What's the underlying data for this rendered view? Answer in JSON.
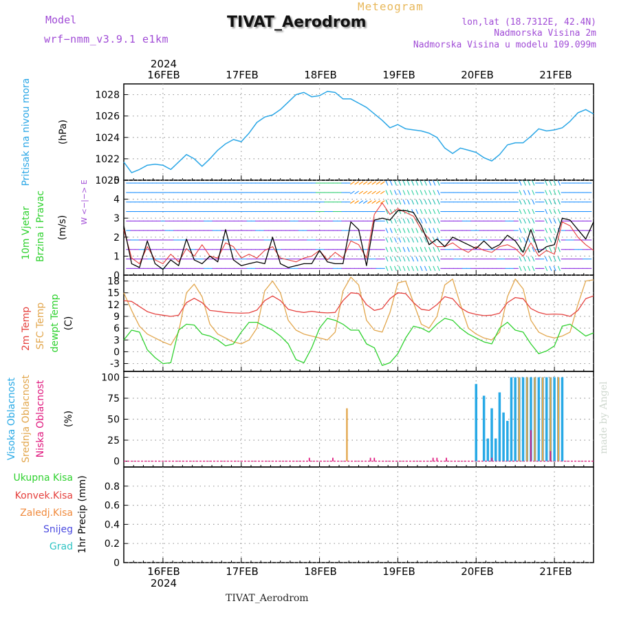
{
  "header": {
    "model_label": "Model",
    "model_version": "wrf−nmm_v3.9.1  e1km",
    "station_title": "TIVAT_Aerodrom",
    "chart_kind": "Meteogram",
    "coords": "lon,lat (18.7312E, 42.4N)",
    "elevation": "Nadmorska Visina 2m",
    "model_elevation": "Nadmorska Visina u modelu 109.099m"
  },
  "footer": {
    "station": "TIVAT_Aerodrom",
    "signature": "made by Angel"
  },
  "colors": {
    "pressure": "#29a6e6",
    "wind_speed": "#000000",
    "gust": "#e83b3b",
    "temp2m": "#e5403d",
    "sfc_temp": "#e2a64c",
    "dewpoint": "#2ed12e",
    "cloud_high": "#27a9e6",
    "cloud_mid": "#e2a64c",
    "cloud_low": "#e0187e",
    "purple": "#a04bd6"
  },
  "chart_data": [
    {
      "type": "line",
      "id": "pressure",
      "ylabel": "(hPa)",
      "side_labels": [
        "Pritisak na nivou mora"
      ],
      "ylim": [
        1020,
        1029
      ],
      "yticks": [
        1020,
        1022,
        1024,
        1026,
        1028
      ],
      "x_days": [
        "16FEB",
        "17FEB",
        "18FEB",
        "19FEB",
        "20FEB",
        "21FEB"
      ],
      "year": "2024",
      "x": [
        15.5,
        15.6,
        15.7,
        15.8,
        15.9,
        16.0,
        16.1,
        16.2,
        16.3,
        16.4,
        16.5,
        16.6,
        16.7,
        16.8,
        16.9,
        17.0,
        17.1,
        17.2,
        17.3,
        17.4,
        17.5,
        17.6,
        17.7,
        17.8,
        17.9,
        18.0,
        18.1,
        18.2,
        18.3,
        18.4,
        18.5,
        18.6,
        18.7,
        18.8,
        18.9,
        19.0,
        19.1,
        19.2,
        19.3,
        19.4,
        19.5,
        19.6,
        19.7,
        19.8,
        19.9,
        20.0,
        20.1,
        20.2,
        20.3,
        20.4,
        20.5,
        20.6,
        20.7,
        20.8,
        20.9,
        21.0,
        21.1,
        21.2,
        21.3,
        21.4,
        21.5
      ],
      "series": [
        {
          "values": [
            1021.7,
            1020.7,
            1021.0,
            1021.4,
            1021.5,
            1021.4,
            1021.0,
            1021.7,
            1022.4,
            1022.0,
            1021.3,
            1022.0,
            1022.8,
            1023.4,
            1023.8,
            1023.6,
            1024.4,
            1025.4,
            1025.9,
            1026.1,
            1026.6,
            1027.3,
            1028.0,
            1028.2,
            1027.8,
            1027.9,
            1028.3,
            1028.2,
            1027.6,
            1027.6,
            1027.2,
            1026.8,
            1026.2,
            1025.6,
            1024.9,
            1025.2,
            1024.8,
            1024.7,
            1024.6,
            1024.4,
            1024.0,
            1023.0,
            1022.5,
            1023.0,
            1022.8,
            1022.6,
            1022.1,
            1021.8,
            1022.4,
            1023.3,
            1023.5,
            1023.5,
            1024.1,
            1024.8,
            1024.6,
            1024.7,
            1024.9,
            1025.5,
            1026.3,
            1026.6,
            1026.2
          ]
        }
      ]
    },
    {
      "type": "line",
      "id": "wind",
      "ylabel": "(m/s)",
      "side_labels": [
        "10m Vjetar",
        "Brzina i Pravac"
      ],
      "compass": "W <−|−> E",
      "ylim": [
        0,
        5
      ],
      "yticks": [
        0,
        1,
        2,
        3,
        4,
        5
      ],
      "x": [
        15.5,
        15.6,
        15.7,
        15.8,
        15.9,
        16.0,
        16.1,
        16.2,
        16.3,
        16.4,
        16.5,
        16.6,
        16.7,
        16.8,
        16.9,
        17.0,
        17.1,
        17.2,
        17.3,
        17.4,
        17.5,
        17.6,
        17.7,
        17.8,
        17.9,
        18.0,
        18.1,
        18.2,
        18.3,
        18.4,
        18.5,
        18.6,
        18.7,
        18.8,
        18.9,
        19.0,
        19.1,
        19.2,
        19.3,
        19.4,
        19.5,
        19.6,
        19.7,
        19.8,
        19.9,
        20.0,
        20.1,
        20.2,
        20.3,
        20.4,
        20.5,
        20.6,
        20.7,
        20.8,
        20.9,
        21.0,
        21.1,
        21.2,
        21.3,
        21.4,
        21.5
      ],
      "series": [
        {
          "values": [
            2.6,
            0.6,
            0.4,
            1.8,
            0.6,
            0.3,
            0.8,
            0.5,
            1.9,
            0.8,
            0.6,
            1.0,
            0.7,
            2.4,
            0.8,
            0.5,
            0.6,
            0.7,
            0.6,
            2.0,
            0.6,
            0.4,
            0.5,
            0.6,
            0.6,
            1.3,
            0.7,
            0.6,
            0.6,
            2.8,
            2.4,
            0.5,
            2.9,
            3.0,
            2.9,
            3.4,
            3.4,
            3.3,
            2.6,
            1.6,
            1.9,
            1.5,
            2.0,
            1.8,
            1.6,
            1.4,
            1.8,
            1.4,
            1.6,
            2.1,
            1.8,
            1.2,
            2.4,
            1.2,
            1.5,
            1.6,
            3.0,
            2.9,
            2.4,
            1.9,
            2.8
          ]
        },
        {
          "values": [
            2.4,
            0.9,
            0.6,
            1.5,
            0.8,
            0.6,
            1.1,
            0.7,
            1.4,
            1.0,
            1.6,
            1.0,
            0.9,
            1.7,
            1.5,
            0.9,
            1.1,
            0.9,
            1.3,
            1.5,
            0.9,
            0.8,
            0.7,
            0.9,
            1.0,
            1.3,
            0.8,
            1.2,
            0.9,
            1.8,
            1.6,
            0.9,
            3.2,
            3.8,
            3.2,
            3.5,
            3.3,
            3.1,
            2.4,
            1.9,
            1.5,
            1.5,
            1.7,
            1.4,
            1.2,
            1.5,
            1.3,
            1.2,
            1.5,
            1.6,
            1.4,
            1.0,
            1.7,
            1.0,
            1.3,
            1.1,
            2.8,
            2.6,
            2.0,
            1.6,
            1.3
          ]
        }
      ]
    },
    {
      "type": "line",
      "id": "temperature",
      "ylabel": "(C)",
      "side_labels": [
        "2m Temp",
        "SFC Temp",
        "dewpt Temp"
      ],
      "ylim": [
        -5,
        19.5
      ],
      "yticks": [
        -3,
        0,
        3,
        6,
        9,
        12,
        15,
        18
      ],
      "x": [
        15.5,
        15.6,
        15.7,
        15.8,
        15.9,
        16.0,
        16.1,
        16.2,
        16.3,
        16.4,
        16.5,
        16.6,
        16.7,
        16.8,
        16.9,
        17.0,
        17.1,
        17.2,
        17.3,
        17.4,
        17.5,
        17.6,
        17.7,
        17.8,
        17.9,
        18.0,
        18.1,
        18.2,
        18.3,
        18.4,
        18.5,
        18.6,
        18.7,
        18.8,
        18.9,
        19.0,
        19.1,
        19.2,
        19.3,
        19.4,
        19.5,
        19.6,
        19.7,
        19.8,
        19.9,
        20.0,
        20.1,
        20.2,
        20.3,
        20.4,
        20.5,
        20.6,
        20.7,
        20.8,
        20.9,
        21.0,
        21.1,
        21.2,
        21.3,
        21.4,
        21.5
      ],
      "series": [
        {
          "name": "2m Temp",
          "values": [
            13.0,
            12.8,
            11.5,
            10.2,
            9.6,
            9.3,
            9.0,
            9.3,
            12.5,
            13.6,
            12.5,
            10.5,
            10.3,
            10.0,
            9.9,
            9.8,
            9.9,
            10.6,
            13.0,
            14.2,
            13.0,
            10.8,
            10.3,
            10.0,
            10.3,
            10.0,
            9.9,
            10.0,
            13.0,
            15.0,
            14.8,
            12.0,
            10.5,
            11.0,
            13.5,
            15.0,
            14.8,
            12.5,
            10.8,
            10.5,
            12.0,
            14.0,
            13.5,
            11.2,
            10.0,
            9.5,
            9.2,
            9.3,
            9.8,
            12.5,
            13.8,
            13.5,
            11.0,
            10.0,
            9.5,
            9.6,
            9.5,
            9.0,
            10.5,
            13.5,
            14.2
          ]
        },
        {
          "name": "SFC Temp",
          "values": [
            15.0,
            10.5,
            6.5,
            4.5,
            3.5,
            2.5,
            1.7,
            5.0,
            15.0,
            17.2,
            14.0,
            7.0,
            4.5,
            3.5,
            2.5,
            2.0,
            3.0,
            6.0,
            15.5,
            18.0,
            15.0,
            8.0,
            5.5,
            4.5,
            4.0,
            3.5,
            3.0,
            5.0,
            15.5,
            19.0,
            17.0,
            8.0,
            5.5,
            5.0,
            10.0,
            17.5,
            18.0,
            12.5,
            7.0,
            6.0,
            9.0,
            17.0,
            18.5,
            12.0,
            6.0,
            4.5,
            3.5,
            3.0,
            5.0,
            14.0,
            18.5,
            16.0,
            8.0,
            5.0,
            4.0,
            3.5,
            4.0,
            5.0,
            12.0,
            18.0,
            18.3
          ]
        },
        {
          "name": "dewpt Temp",
          "values": [
            3.0,
            5.5,
            5.0,
            0.5,
            -1.5,
            -3.0,
            -2.8,
            5.5,
            7.0,
            6.8,
            4.5,
            4.0,
            3.0,
            1.5,
            2.0,
            5.0,
            7.5,
            7.5,
            6.5,
            5.5,
            4.0,
            2.0,
            -2.0,
            -2.8,
            1.0,
            6.0,
            8.5,
            8.0,
            7.0,
            5.5,
            5.5,
            2.0,
            1.0,
            -3.5,
            -2.8,
            -0.5,
            3.5,
            6.5,
            6.0,
            5.0,
            7.0,
            8.5,
            8.0,
            6.0,
            4.5,
            3.5,
            2.5,
            2.0,
            6.0,
            7.5,
            5.5,
            5.0,
            2.0,
            -0.5,
            0.2,
            1.5,
            6.5,
            7.0,
            5.5,
            4.0,
            4.8
          ]
        }
      ]
    },
    {
      "type": "bar",
      "id": "clouds",
      "ylabel": "(%)",
      "side_labels": [
        "Visoka Oblacnost",
        "Srednja Oblacnost",
        "Niska Oblacnost"
      ],
      "ylim": [
        -7,
        107
      ],
      "yticks": [
        0,
        25,
        50,
        75,
        100
      ],
      "series": [
        {
          "name": "Visoka Oblacnost",
          "x": [
            20.0,
            20.05,
            20.1,
            20.15,
            20.2,
            20.25,
            20.3,
            20.35,
            20.4,
            20.45,
            20.5,
            20.55,
            20.6,
            20.65,
            20.7,
            20.75,
            20.8,
            20.85,
            20.9,
            20.95,
            21.0,
            21.05,
            21.1
          ],
          "values": [
            92,
            0,
            78,
            27,
            63,
            27,
            82,
            58,
            48,
            100,
            100,
            100,
            100,
            100,
            100,
            100,
            100,
            100,
            100,
            100,
            100,
            100,
            100
          ]
        },
        {
          "name": "Srednja Oblacnost",
          "x": [
            18.35,
            20.55,
            20.65,
            20.75,
            20.85,
            20.95,
            21.05
          ],
          "values": [
            63,
            100,
            100,
            100,
            100,
            100,
            100
          ]
        },
        {
          "name": "Niska Oblacnost",
          "x": [
            17.87,
            18.17,
            18.65,
            18.7,
            19.45,
            19.5,
            19.62,
            20.2,
            20.7,
            20.95
          ],
          "values": [
            4,
            4,
            4,
            4,
            4,
            4,
            4,
            4,
            37,
            12
          ]
        }
      ]
    },
    {
      "type": "bar",
      "id": "precip",
      "ylabel": "1hr Precip (mm)",
      "side_labels": [
        "Ukupna Kisa",
        "Konvek.Kisa",
        "Zaledj.Kisa",
        "Snijeg",
        "Grad"
      ],
      "ylim": [
        0,
        1
      ],
      "yticks": [
        0,
        0.2,
        0.4,
        0.6,
        0.8
      ],
      "series": []
    }
  ]
}
